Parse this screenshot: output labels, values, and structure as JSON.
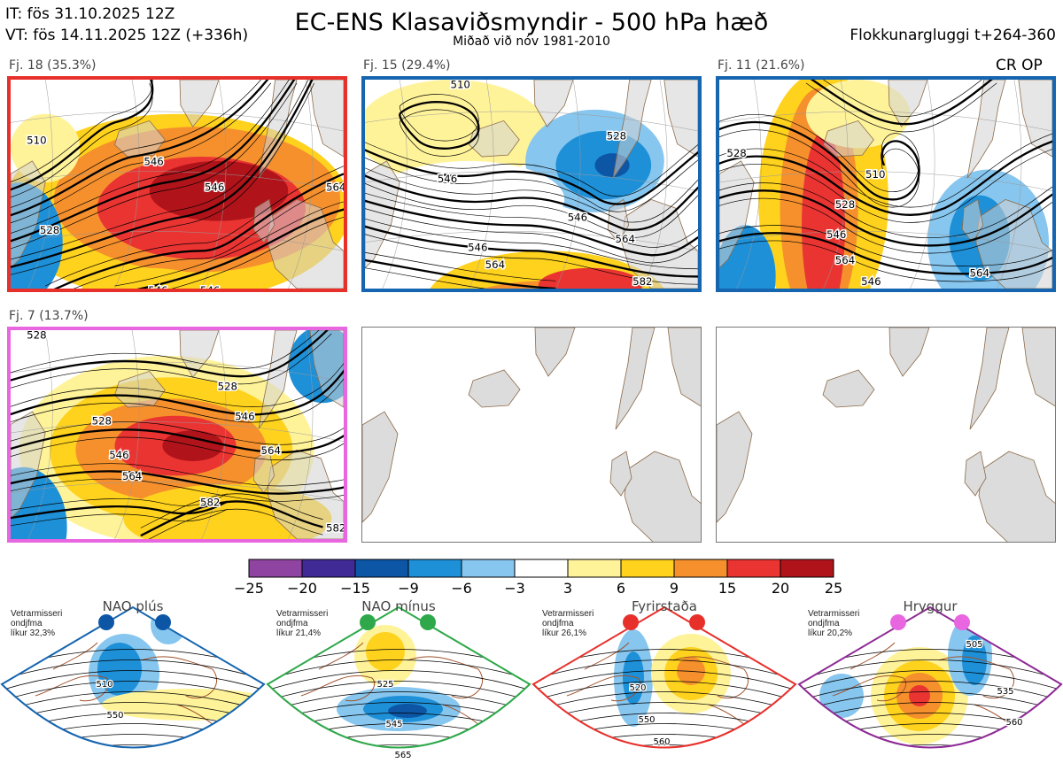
{
  "header": {
    "title": "EC-ENS Klasaviðsmyndir - 500 hPa hæð",
    "subtitle": "Miðað við nóv 1981-2010",
    "it": "IT: fös 31.10.2025 12Z",
    "vt": "VT: fös 14.11.2025 12Z  (+336h)",
    "window": "Flokkunargluggi t+264-360",
    "crop": "CR OP"
  },
  "panels": [
    {
      "label": "Fj. 18 (35.3%)",
      "border": "#e8302b",
      "contours": [
        "510",
        "528",
        "546",
        "546",
        "546",
        "546",
        "564"
      ]
    },
    {
      "label": "Fj. 15 (29.4%)",
      "border": "#1565b0",
      "contours": [
        "510",
        "528",
        "546",
        "546",
        "546",
        "564",
        "564",
        "582"
      ]
    },
    {
      "label": "Fj. 11 (21.6%)",
      "border": "#1565b0",
      "contours": [
        "528",
        "510",
        "528",
        "546",
        "546",
        "564",
        "564"
      ]
    },
    {
      "label": "Fj. 7 (13.7%)",
      "border": "#e866e0",
      "contours": [
        "528",
        "528",
        "528",
        "546",
        "546",
        "564",
        "564",
        "582",
        "582"
      ]
    },
    {
      "label": "",
      "border": "",
      "contours": []
    },
    {
      "label": "",
      "border": "",
      "contours": []
    }
  ],
  "colorbar": {
    "ticks": [
      "−25",
      "−20",
      "−15",
      "−9",
      "−6",
      "−3",
      "3",
      "6",
      "9",
      "15",
      "20",
      "25"
    ],
    "colors": [
      "#8e44a0",
      "#3f2a96",
      "#0d56a6",
      "#1e90d8",
      "#87c6ee",
      "#ffffff",
      "#fff39a",
      "#ffd21e",
      "#f5902d",
      "#ea3432",
      "#b0141a"
    ]
  },
  "regimes": [
    {
      "name": "NAO plús",
      "line1": "Vetrarmisseri",
      "line2": "ondjfma",
      "line3": "líkur 32,3%",
      "border": "#1565b0",
      "dot": "#0d56a6",
      "contours": [
        "510",
        "550"
      ]
    },
    {
      "name": "NAO mínus",
      "line1": "Vetrarmisseri",
      "line2": "ondjfma",
      "line3": "líkur 21,4%",
      "border": "#2ea84a",
      "dot": "#2ea84a",
      "contours": [
        "525",
        "545",
        "565"
      ]
    },
    {
      "name": "Fyrirstaða",
      "line1": "Vetrarmisseri",
      "line2": "ondjfma",
      "line3": "líkur 26,1%",
      "border": "#e8302b",
      "dot": "#e8302b",
      "contours": [
        "520",
        "550",
        "560"
      ]
    },
    {
      "name": "Hryggur",
      "line1": "Vetrarmisseri",
      "line2": "ondjfma",
      "line3": "líkur 20,2%",
      "border": "#8e2a96",
      "dot": "#e866e0",
      "contours": [
        "505",
        "535",
        "560"
      ]
    }
  ]
}
